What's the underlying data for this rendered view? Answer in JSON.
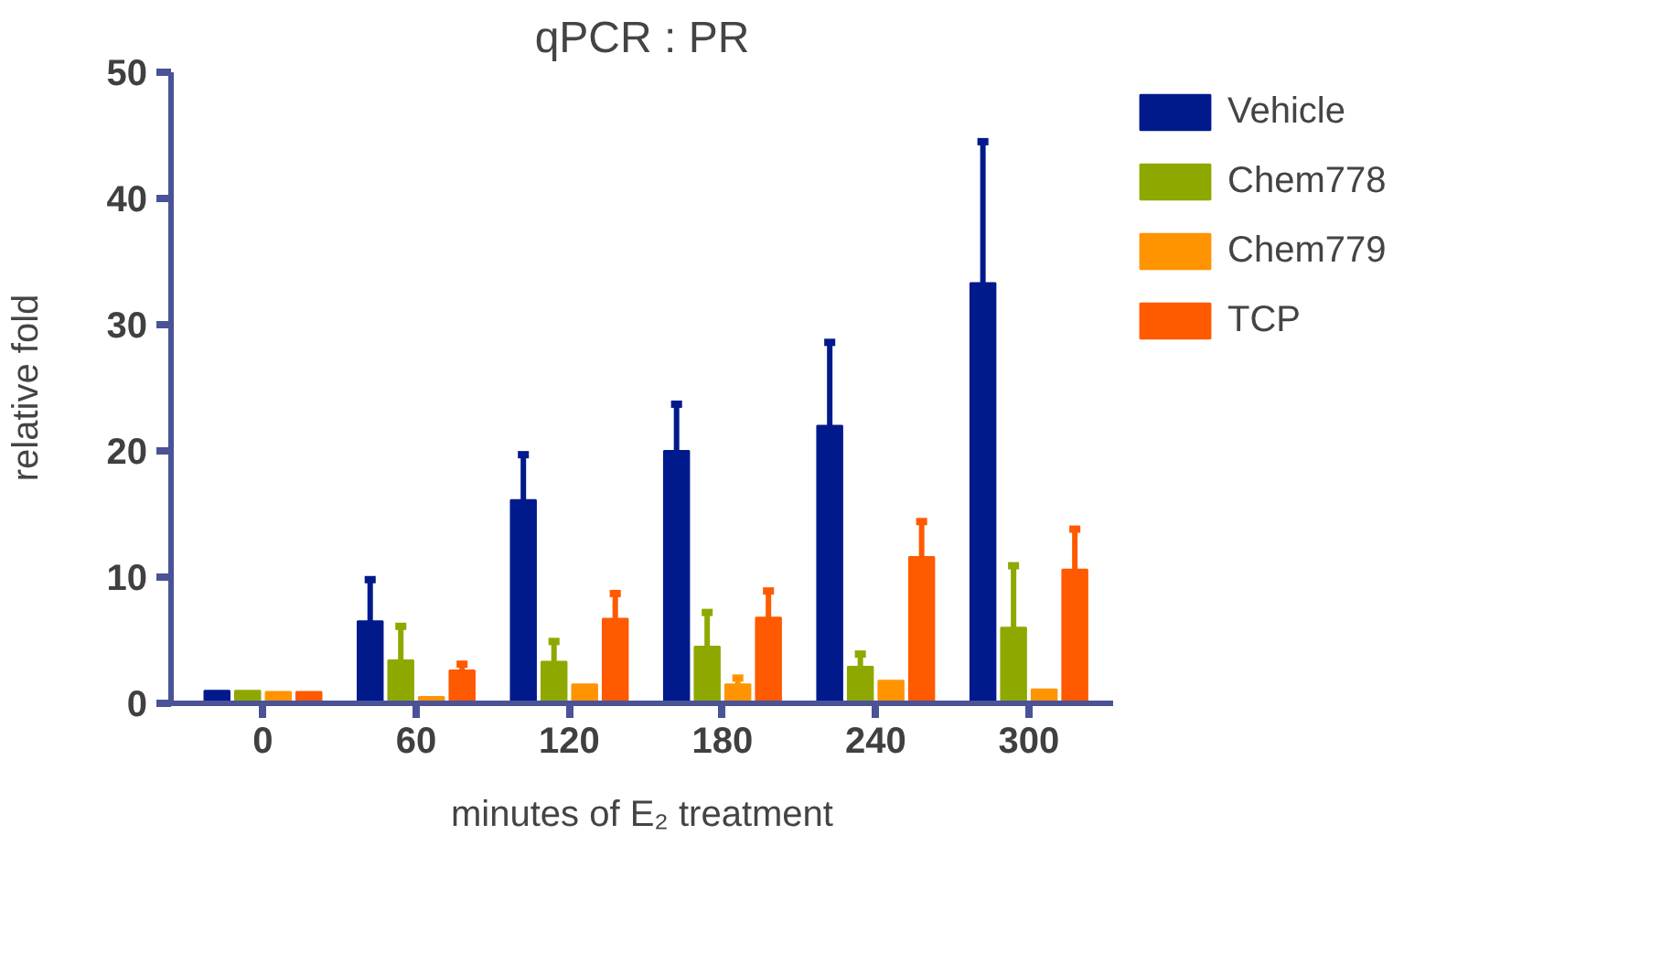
{
  "chart_data": {
    "type": "bar",
    "title": "qPCR : PR",
    "xlabel": "minutes of E₂ treatment",
    "ylabel": "relative fold",
    "categories": [
      "0",
      "60",
      "120",
      "180",
      "240",
      "300"
    ],
    "series": [
      {
        "name": "Vehicle",
        "color": "#001a8c",
        "values": [
          1.0,
          6.5,
          16.1,
          20.0,
          22.0,
          33.3
        ],
        "errors": [
          null,
          [
            6.5,
            9.8
          ],
          [
            16.1,
            19.7
          ],
          [
            20.0,
            23.7
          ],
          [
            22.0,
            28.6
          ],
          [
            33.3,
            44.5
          ]
        ]
      },
      {
        "name": "Chem778",
        "color": "#8fa800",
        "values": [
          1.0,
          3.4,
          3.3,
          4.5,
          2.9,
          6.0
        ],
        "errors": [
          null,
          [
            3.4,
            6.1
          ],
          [
            3.3,
            4.9
          ],
          [
            4.5,
            7.2
          ],
          [
            2.9,
            3.9
          ],
          [
            6.0,
            10.9
          ]
        ]
      },
      {
        "name": "Chem779",
        "color": "#ff9400",
        "values": [
          0.9,
          0.5,
          1.5,
          1.5,
          1.8,
          1.1
        ],
        "errors": [
          null,
          null,
          null,
          [
            1.5,
            2.0
          ],
          null,
          null
        ]
      },
      {
        "name": "TCP",
        "color": "#ff5a00",
        "values": [
          0.9,
          2.6,
          6.7,
          6.8,
          11.6,
          10.6
        ],
        "errors": [
          null,
          [
            2.6,
            3.1
          ],
          [
            6.7,
            8.7
          ],
          [
            6.8,
            8.9
          ],
          [
            11.6,
            14.4
          ],
          [
            10.6,
            13.8
          ]
        ]
      }
    ],
    "ylim": [
      0,
      50
    ],
    "yticks": [
      0,
      10,
      20,
      30,
      40,
      50
    ],
    "grid": false,
    "legend": "right"
  }
}
